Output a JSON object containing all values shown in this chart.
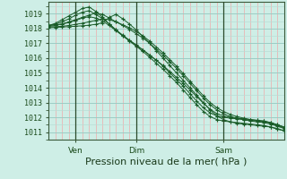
{
  "title": "Pression niveau de la mer( hPa )",
  "bg_color": "#ceeee6",
  "line_color": "#1a5c28",
  "ylim": [
    1010.5,
    1019.8
  ],
  "yticks": [
    1011,
    1012,
    1013,
    1014,
    1015,
    1016,
    1017,
    1018,
    1019
  ],
  "xtick_labels": [
    "Ven",
    "Dim",
    "Sam"
  ],
  "xtick_positions": [
    4,
    13,
    26
  ],
  "vline_positions": [
    4,
    13,
    26
  ],
  "n_points": 36,
  "series": [
    [
      1018.2,
      1018.25,
      1018.3,
      1018.4,
      1018.55,
      1018.7,
      1018.8,
      1018.7,
      1018.5,
      1018.2,
      1017.85,
      1017.5,
      1017.2,
      1016.85,
      1016.55,
      1016.2,
      1015.85,
      1015.5,
      1015.1,
      1014.7,
      1014.3,
      1013.85,
      1013.4,
      1012.95,
      1012.55,
      1012.25,
      1012.1,
      1012.0,
      1011.95,
      1011.9,
      1011.85,
      1011.8,
      1011.75,
      1011.65,
      1011.5,
      1011.35
    ],
    [
      1018.2,
      1018.3,
      1018.45,
      1018.65,
      1018.9,
      1019.1,
      1019.2,
      1018.95,
      1018.65,
      1018.3,
      1017.9,
      1017.55,
      1017.2,
      1016.9,
      1016.55,
      1016.2,
      1015.85,
      1015.45,
      1015.0,
      1014.55,
      1014.1,
      1013.6,
      1013.1,
      1012.65,
      1012.3,
      1012.1,
      1012.0,
      1011.95,
      1011.9,
      1011.85,
      1011.8,
      1011.75,
      1011.7,
      1011.6,
      1011.45,
      1011.3
    ],
    [
      1018.2,
      1018.35,
      1018.6,
      1018.85,
      1019.1,
      1019.35,
      1019.45,
      1019.15,
      1018.75,
      1018.3,
      1017.9,
      1017.5,
      1017.15,
      1016.8,
      1016.45,
      1016.05,
      1015.65,
      1015.25,
      1014.8,
      1014.35,
      1013.85,
      1013.35,
      1012.85,
      1012.4,
      1012.05,
      1011.85,
      1011.75,
      1011.7,
      1011.65,
      1011.6,
      1011.55,
      1011.5,
      1011.45,
      1011.35,
      1011.2,
      1011.1
    ],
    [
      1018.15,
      1018.2,
      1018.3,
      1018.45,
      1018.6,
      1018.75,
      1018.9,
      1019.05,
      1018.95,
      1018.7,
      1018.45,
      1018.2,
      1017.95,
      1017.65,
      1017.35,
      1017.0,
      1016.6,
      1016.2,
      1015.75,
      1015.3,
      1014.8,
      1014.3,
      1013.8,
      1013.3,
      1012.85,
      1012.5,
      1012.25,
      1012.05,
      1011.95,
      1011.85,
      1011.75,
      1011.7,
      1011.65,
      1011.55,
      1011.4,
      1011.25
    ],
    [
      1018.1,
      1018.12,
      1018.15,
      1018.2,
      1018.28,
      1018.35,
      1018.45,
      1018.55,
      1018.65,
      1018.6,
      1018.45,
      1018.25,
      1018.05,
      1017.8,
      1017.5,
      1017.15,
      1016.75,
      1016.35,
      1015.9,
      1015.45,
      1014.95,
      1014.45,
      1013.95,
      1013.45,
      1013.0,
      1012.65,
      1012.4,
      1012.2,
      1012.05,
      1011.95,
      1011.85,
      1011.8,
      1011.75,
      1011.65,
      1011.5,
      1011.35
    ],
    [
      1018.05,
      1018.07,
      1018.1,
      1018.12,
      1018.15,
      1018.18,
      1018.22,
      1018.28,
      1018.38,
      1018.75,
      1018.95,
      1018.65,
      1018.3,
      1017.9,
      1017.45,
      1017.0,
      1016.5,
      1016.0,
      1015.5,
      1015.0,
      1014.5,
      1014.0,
      1013.5,
      1013.0,
      1012.5,
      1012.1,
      1011.85,
      1011.7,
      1011.6,
      1011.55,
      1011.5,
      1011.45,
      1011.4,
      1011.35,
      1011.25,
      1011.1
    ]
  ],
  "minor_grid_color_h": "#b8ddd6",
  "minor_grid_color_v": "#f0aaaa",
  "major_grid_color": "#9cccc4",
  "ylabel_fontsize": 6,
  "xlabel_fontsize": 8
}
